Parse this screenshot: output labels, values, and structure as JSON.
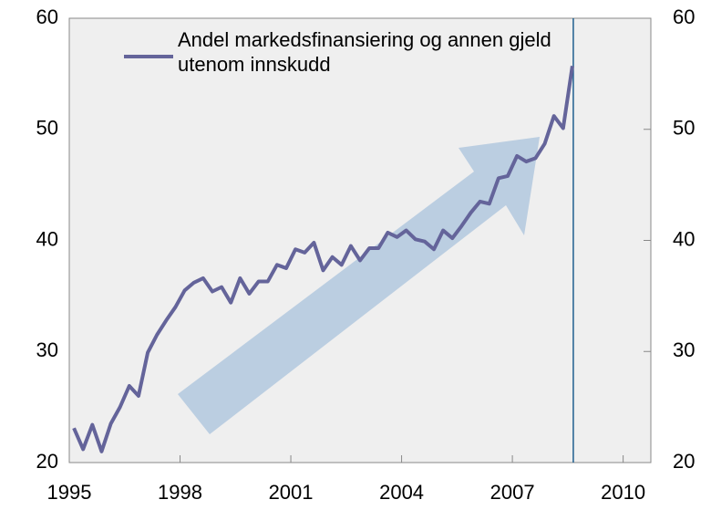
{
  "chart_data": {
    "type": "line",
    "x": [
      1995.125,
      1995.375,
      1995.625,
      1995.875,
      1996.125,
      1996.375,
      1996.625,
      1996.875,
      1997.125,
      1997.375,
      1997.625,
      1997.875,
      1998.125,
      1998.375,
      1998.625,
      1998.875,
      1999.125,
      1999.375,
      1999.625,
      1999.875,
      2000.125,
      2000.375,
      2000.625,
      2000.875,
      2001.125,
      2001.375,
      2001.625,
      2001.875,
      2002.125,
      2002.375,
      2002.625,
      2002.875,
      2003.125,
      2003.375,
      2003.625,
      2003.875,
      2004.125,
      2004.375,
      2004.625,
      2004.875,
      2005.125,
      2005.375,
      2005.625,
      2005.875,
      2006.125,
      2006.375,
      2006.625,
      2006.875,
      2007.125,
      2007.375,
      2007.625,
      2007.875,
      2008.125,
      2008.375,
      2008.625
    ],
    "series": [
      {
        "name": "Andel markedsfinansiering og annen gjeld utenom innskudd",
        "color": "#64649a",
        "values": [
          23.1,
          21.2,
          23.4,
          21.0,
          23.5,
          25.0,
          26.9,
          26.0,
          29.9,
          31.5,
          32.8,
          34.0,
          35.5,
          36.2,
          36.6,
          35.4,
          35.8,
          34.4,
          36.6,
          35.2,
          36.3,
          36.3,
          37.8,
          37.5,
          39.2,
          38.9,
          39.8,
          37.3,
          38.5,
          37.8,
          39.5,
          38.2,
          39.3,
          39.3,
          40.7,
          40.3,
          40.9,
          40.1,
          39.9,
          39.2,
          40.9,
          40.2,
          41.3,
          42.5,
          43.5,
          43.3,
          45.6,
          45.8,
          47.6,
          47.1,
          47.4,
          48.7,
          51.2,
          50.1,
          55.7
        ]
      }
    ],
    "xlim": [
      1995,
      2010.75
    ],
    "xticks": [
      1995,
      1998,
      2001,
      2004,
      2007,
      2010
    ],
    "ylim": [
      20,
      60
    ],
    "yticks": [
      20,
      30,
      40,
      50,
      60
    ],
    "vline": 2008.65,
    "vline_color": "#1f5f8f"
  }
}
